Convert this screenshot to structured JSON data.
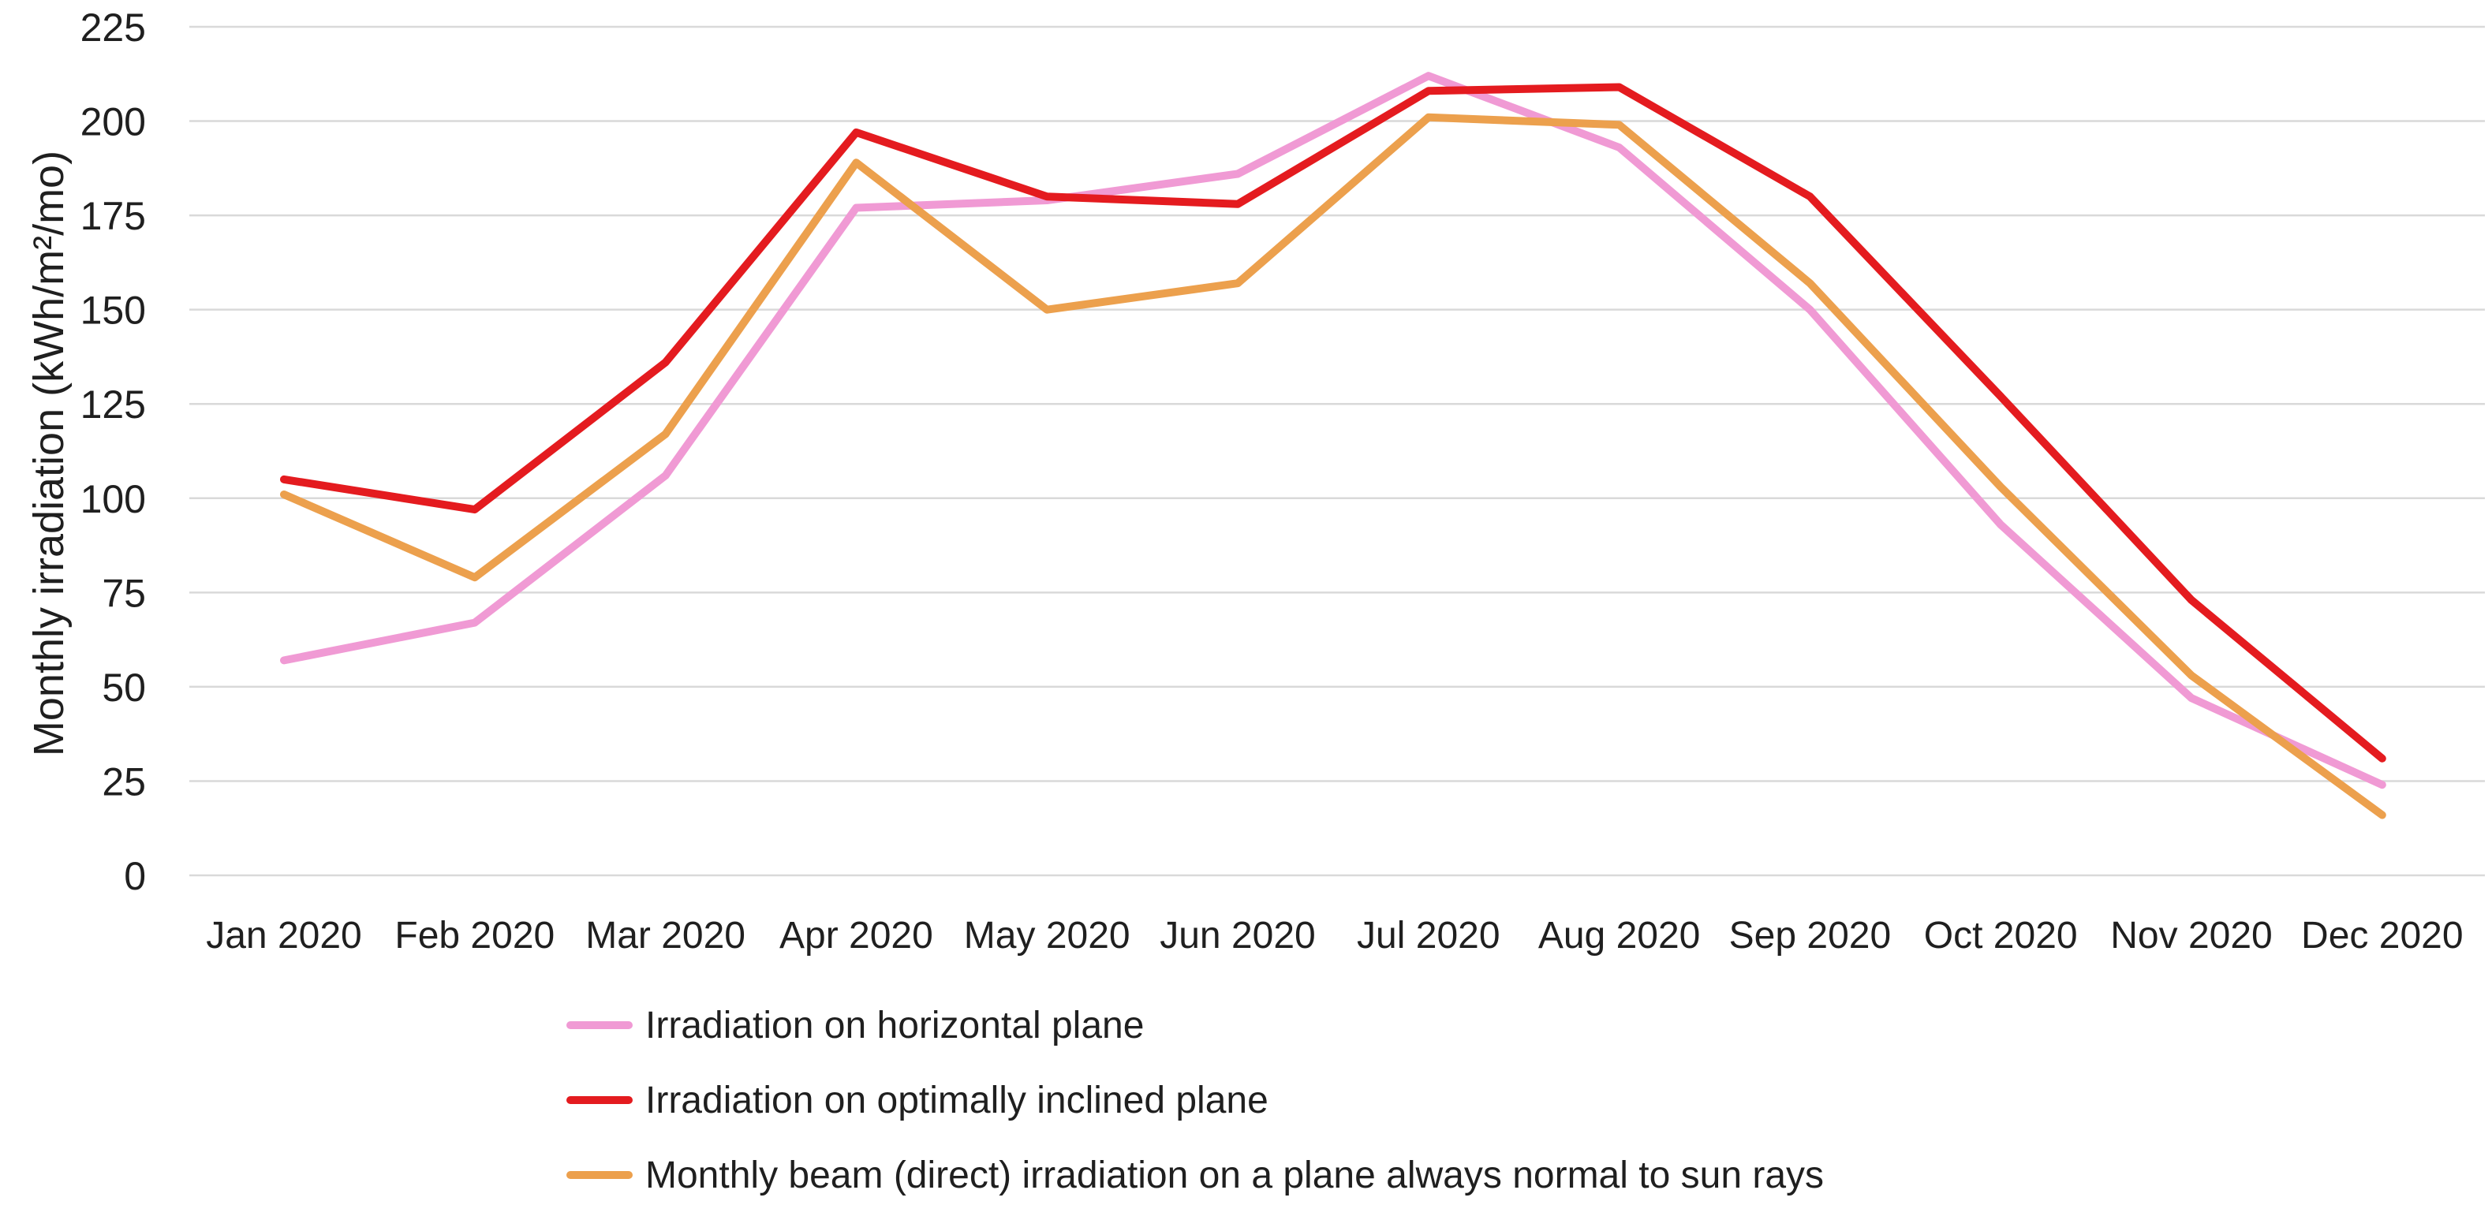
{
  "chart_data": {
    "type": "line",
    "title": "",
    "xlabel": "",
    "ylabel": "Monthly irradiation (kWh/m²/mo)",
    "ylim": [
      0,
      225
    ],
    "ytick_step": 25,
    "yticks": [
      0,
      25,
      50,
      75,
      100,
      125,
      150,
      175,
      200,
      225
    ],
    "grid": "horizontal",
    "legend_position": "bottom-left",
    "categories": [
      "Jan 2020",
      "Feb 2020",
      "Mar 2020",
      "Apr 2020",
      "May 2020",
      "Jun 2020",
      "Jul 2020",
      "Aug 2020",
      "Sep 2020",
      "Oct 2020",
      "Nov 2020",
      "Dec 2020"
    ],
    "series": [
      {
        "name": "Irradiation on horizontal plane",
        "color": "#F09AD4",
        "values": [
          57,
          67,
          106,
          177,
          179,
          186,
          212,
          193,
          150,
          93,
          47,
          24
        ]
      },
      {
        "name": "Irradiation on optimally inclined plane",
        "color": "#E41B1F",
        "values": [
          105,
          97,
          136,
          197,
          180,
          178,
          208,
          209,
          180,
          127,
          73,
          31
        ]
      },
      {
        "name": "Monthly beam (direct) irradiation on a plane always normal to sun rays",
        "color": "#ECA04D",
        "values": [
          101,
          79,
          117,
          189,
          150,
          157,
          201,
          199,
          157,
          103,
          53,
          16
        ]
      }
    ]
  },
  "colors": {
    "grid": "#D9D9D9",
    "text": "#1F1F1F",
    "background": "#FFFFFF"
  }
}
